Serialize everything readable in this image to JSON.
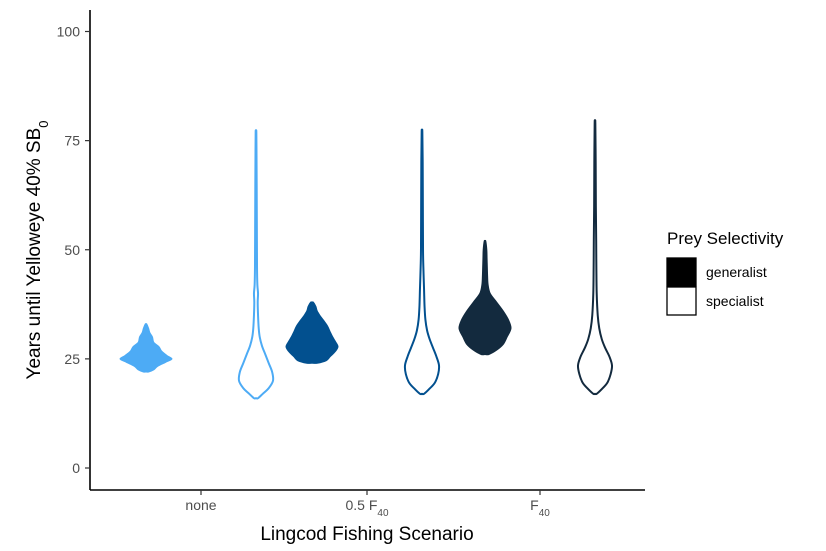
{
  "chart_data": {
    "type": "violin",
    "xlabel": "Lingcod Fishing Scenario",
    "ylabel": {
      "main": "Years until Yelloweye 40% SB",
      "subscript": "0"
    },
    "ylim": [
      0,
      105
    ],
    "yticks": [
      0,
      25,
      50,
      75,
      100
    ],
    "grid": false,
    "categories": [
      {
        "main": "none",
        "subscript": ""
      },
      {
        "main": "0.5 F",
        "subscript": "40"
      },
      {
        "main": "F",
        "subscript": "40"
      }
    ],
    "legend": {
      "title": "Prey Selectivity",
      "placement": "right",
      "entries": [
        {
          "label": "generalist",
          "style": "filled"
        },
        {
          "label": "specialist",
          "style": "outline"
        }
      ]
    },
    "colors": [
      "#4dabf5",
      "#02508f",
      "#132a3e"
    ],
    "series": [
      {
        "name": "generalist",
        "violins": [
          {
            "category": 0,
            "min": 22,
            "max": 33,
            "profile": [
              [
                22,
                0.1
              ],
              [
                22.5,
                0.3
              ],
              [
                23.3,
                0.45
              ],
              [
                24.2,
                0.75
              ],
              [
                25,
                1
              ],
              [
                25.8,
                0.8
              ],
              [
                26.8,
                0.6
              ],
              [
                27.8,
                0.5
              ],
              [
                28.8,
                0.3
              ],
              [
                30,
                0.25
              ],
              [
                31,
                0.15
              ],
              [
                32,
                0.1
              ],
              [
                33,
                0.03
              ]
            ]
          },
          {
            "category": 1,
            "min": 24,
            "max": 38,
            "profile": [
              [
                24,
                0.2
              ],
              [
                24.6,
                0.55
              ],
              [
                25.5,
                0.7
              ],
              [
                26.7,
                0.9
              ],
              [
                27.8,
                1
              ],
              [
                29,
                0.9
              ],
              [
                30,
                0.8
              ],
              [
                31.2,
                0.7
              ],
              [
                32.5,
                0.6
              ],
              [
                33.8,
                0.45
              ],
              [
                35,
                0.3
              ],
              [
                36,
                0.2
              ],
              [
                37,
                0.15
              ],
              [
                38,
                0.05
              ]
            ]
          },
          {
            "category": 2,
            "min": 26,
            "max": 52,
            "profile": [
              [
                26,
                0.15
              ],
              [
                27,
                0.45
              ],
              [
                28.3,
                0.7
              ],
              [
                30,
                0.85
              ],
              [
                32,
                1
              ],
              [
                34,
                0.9
              ],
              [
                36,
                0.7
              ],
              [
                38,
                0.45
              ],
              [
                40,
                0.2
              ],
              [
                42,
                0.12
              ],
              [
                44,
                0.1
              ],
              [
                46,
                0.09
              ],
              [
                48,
                0.08
              ],
              [
                50,
                0.07
              ],
              [
                52,
                0.03
              ]
            ]
          }
        ]
      },
      {
        "name": "specialist",
        "violins": [
          {
            "category": 0,
            "min": 16,
            "max": 77,
            "profile": [
              [
                16,
                0.12
              ],
              [
                17,
                0.4
              ],
              [
                18.3,
                0.75
              ],
              [
                20,
                1
              ],
              [
                22,
                0.95
              ],
              [
                24,
                0.75
              ],
              [
                26,
                0.55
              ],
              [
                28,
                0.35
              ],
              [
                30,
                0.22
              ],
              [
                32,
                0.16
              ],
              [
                35,
                0.12
              ],
              [
                38,
                0.1
              ],
              [
                40,
                0.12
              ],
              [
                42,
                0.08
              ],
              [
                46,
                0.06
              ],
              [
                55,
                0.05
              ],
              [
                65,
                0.04
              ],
              [
                72,
                0.03
              ],
              [
                77,
                0.02
              ]
            ]
          },
          {
            "category": 1,
            "min": 17,
            "max": 77,
            "profile": [
              [
                17,
                0.12
              ],
              [
                18,
                0.4
              ],
              [
                19.5,
                0.75
              ],
              [
                21.5,
                0.95
              ],
              [
                23.5,
                1
              ],
              [
                25.5,
                0.85
              ],
              [
                27.5,
                0.65
              ],
              [
                29.5,
                0.45
              ],
              [
                31.5,
                0.3
              ],
              [
                34,
                0.2
              ],
              [
                37,
                0.15
              ],
              [
                41,
                0.12
              ],
              [
                46,
                0.08
              ],
              [
                50,
                0.06
              ],
              [
                60,
                0.05
              ],
              [
                70,
                0.04
              ],
              [
                77,
                0.02
              ]
            ]
          },
          {
            "category": 2,
            "min": 17,
            "max": 79,
            "profile": [
              [
                17,
                0.1
              ],
              [
                18,
                0.38
              ],
              [
                19.5,
                0.72
              ],
              [
                21.5,
                0.92
              ],
              [
                23.5,
                1
              ],
              [
                25.5,
                0.85
              ],
              [
                27.5,
                0.6
              ],
              [
                29.5,
                0.4
              ],
              [
                32,
                0.25
              ],
              [
                35,
                0.16
              ],
              [
                40,
                0.1
              ],
              [
                46,
                0.08
              ],
              [
                52,
                0.07
              ],
              [
                60,
                0.05
              ],
              [
                70,
                0.04
              ],
              [
                79,
                0.02
              ]
            ]
          }
        ]
      }
    ]
  }
}
